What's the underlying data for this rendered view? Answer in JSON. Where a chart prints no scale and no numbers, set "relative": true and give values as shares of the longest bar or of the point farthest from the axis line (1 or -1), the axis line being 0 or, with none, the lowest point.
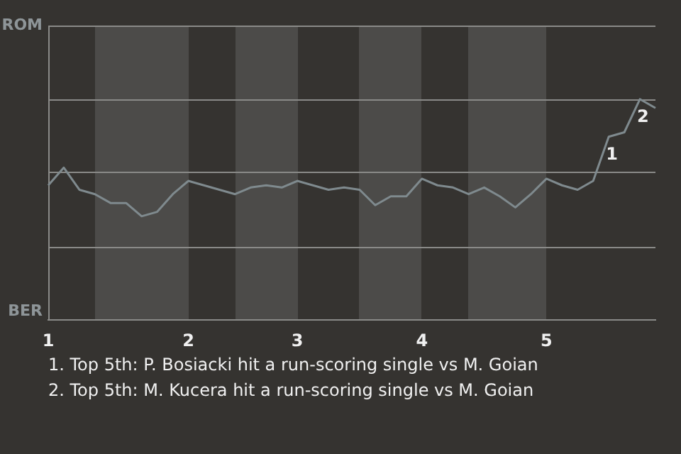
{
  "chart_data": {
    "type": "line",
    "categories": [
      "1",
      null,
      null,
      null,
      null,
      null,
      null,
      null,
      null,
      "2",
      null,
      null,
      null,
      null,
      null,
      null,
      "3",
      null,
      null,
      null,
      null,
      null,
      null,
      null,
      "4",
      null,
      null,
      null,
      null,
      null,
      null,
      null,
      "5",
      null,
      null,
      null,
      null,
      null,
      null,
      null
    ],
    "relative": true,
    "series": [
      {
        "color": "#7f8a8e",
        "values": [
          0.61,
          0.69,
          0.59,
          0.57,
          0.53,
          0.53,
          0.47,
          0.49,
          0.57,
          0.63,
          0.61,
          0.59,
          0.57,
          0.6,
          0.61,
          0.6,
          0.63,
          0.61,
          0.59,
          0.6,
          0.59,
          0.52,
          0.56,
          0.56,
          0.64,
          0.61,
          0.6,
          0.57,
          0.6,
          0.56,
          0.51,
          0.57,
          0.64,
          0.61,
          0.59,
          0.63,
          0.83,
          0.85,
          1,
          0.96
        ]
      }
    ],
    "ref_lines": [
      {
        "axis": "y",
        "value": 0.33,
        "color": "#8a8a88"
      },
      {
        "axis": "y",
        "value": 0.67,
        "color": "#8a8a88"
      },
      {
        "axis": "y",
        "value": 1,
        "color": "#8a8a88"
      }
    ],
    "marker": "none",
    "line_style": "solid",
    "annotations": [
      "ROM",
      "BER",
      {
        "text": "1",
        "y": 0.83
      },
      {
        "text": "2",
        "y": 1
      },
      "1. Top 5th: P. Bosiacki hit a run-scoring single vs M. Goian",
      "2. Top 5th: M. Kucera hit a run-scoring single vs M. Goian"
    ]
  }
}
